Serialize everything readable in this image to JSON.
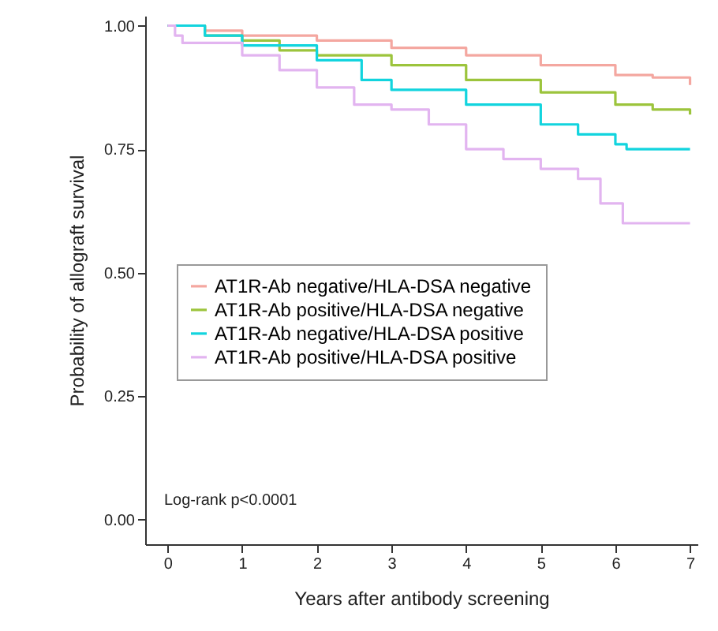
{
  "chart_data": {
    "type": "step",
    "xlabel": "Years after antibody screening",
    "ylabel": "Probability of allograft survival",
    "xlim": [
      -0.3,
      7.1
    ],
    "xticks": [
      0,
      1,
      2,
      3,
      4,
      5,
      6,
      7
    ],
    "ylim": [
      -0.05,
      1.02
    ],
    "yticks": [
      {
        "value": 0,
        "label": "0.00"
      },
      {
        "value": 0.25,
        "label": "0.25"
      },
      {
        "value": 0.5,
        "label": "0.50"
      },
      {
        "value": 0.75,
        "label": "0.75"
      },
      {
        "value": 1,
        "label": "1.00"
      }
    ],
    "grid": false,
    "legend": "bottom left",
    "line_style": "solid",
    "marker": "none",
    "annotations": [
      "Log-rank p<0.0001"
    ],
    "series": [
      {
        "name": "AT1R-Ab negative/HLA-DSA negative",
        "color": "#f4a7a0",
        "x": [
          0,
          0.5,
          1,
          2,
          3,
          4,
          5,
          6,
          6.5,
          7
        ],
        "values": [
          1,
          0.99,
          0.98,
          0.97,
          0.955,
          0.94,
          0.92,
          0.9,
          0.895,
          0.88
        ]
      },
      {
        "name": "AT1R-Ab positive/HLA-DSA negative",
        "color": "#9cc43c",
        "x": [
          0,
          0.5,
          1,
          1.5,
          2,
          3,
          4,
          5,
          6,
          6.5,
          7
        ],
        "values": [
          1,
          0.98,
          0.97,
          0.95,
          0.94,
          0.92,
          0.89,
          0.865,
          0.84,
          0.83,
          0.82
        ]
      },
      {
        "name": "AT1R-Ab negative/HLA-DSA positive",
        "color": "#12d4de",
        "x": [
          0,
          0.5,
          1,
          2,
          2.6,
          3,
          4,
          5,
          5.5,
          6,
          6.15,
          7
        ],
        "values": [
          1,
          0.98,
          0.96,
          0.93,
          0.89,
          0.87,
          0.84,
          0.8,
          0.78,
          0.76,
          0.75,
          0.75
        ]
      },
      {
        "name": "AT1R-Ab positive/HLA-DSA positive",
        "color": "#e2b4f0",
        "x": [
          0,
          0.1,
          0.2,
          1,
          1.5,
          2,
          2.5,
          3,
          3.5,
          4,
          4.5,
          5,
          5.5,
          5.8,
          6.1,
          7
        ],
        "values": [
          1,
          0.98,
          0.965,
          0.94,
          0.91,
          0.875,
          0.84,
          0.83,
          0.8,
          0.75,
          0.73,
          0.71,
          0.69,
          0.64,
          0.6,
          0.6
        ]
      }
    ]
  }
}
